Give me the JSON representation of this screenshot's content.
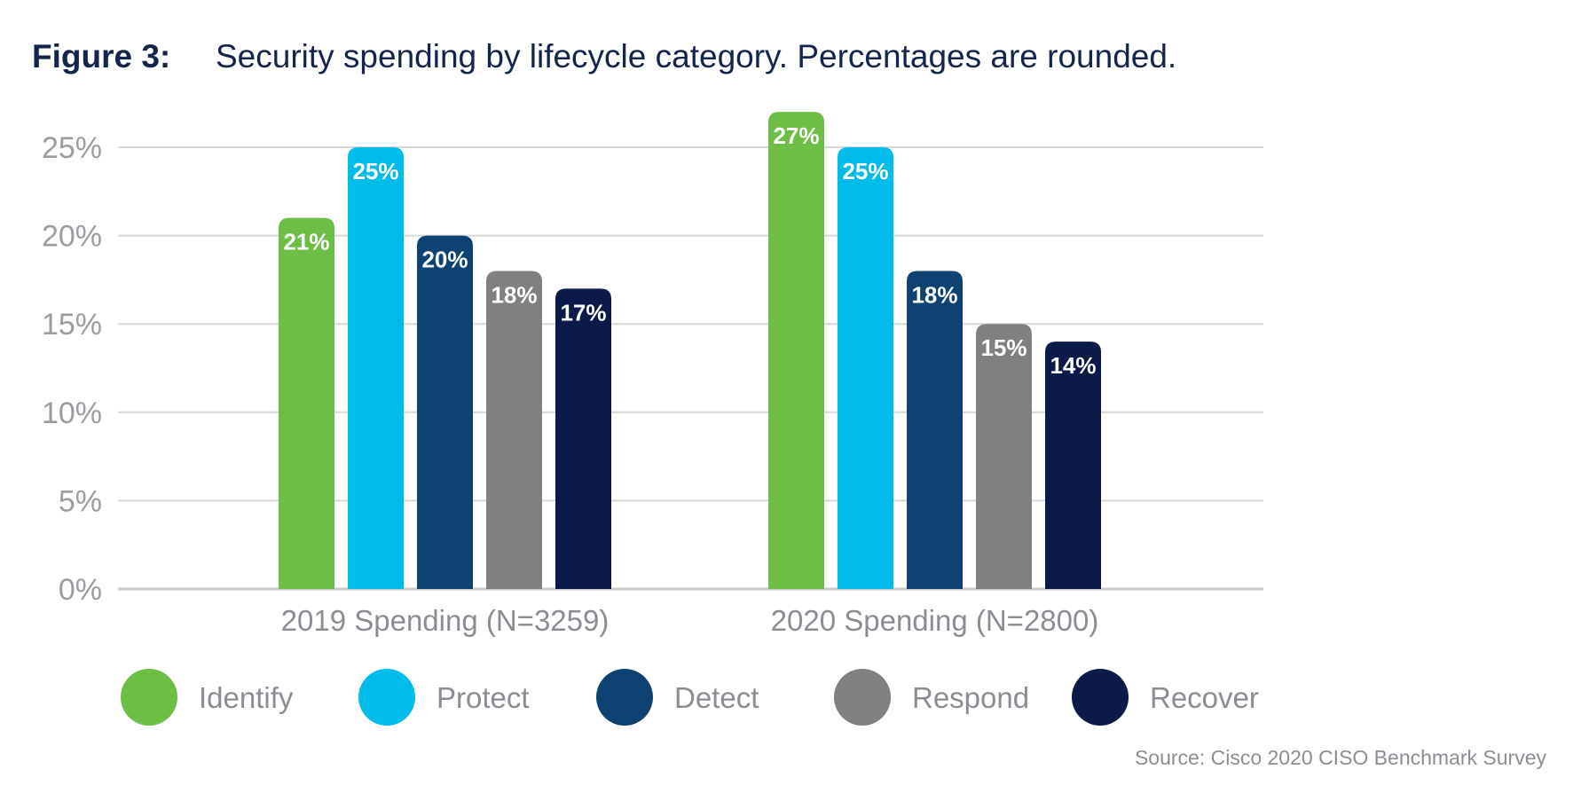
{
  "figure_label": "Figure 3:",
  "title": "Security spending by lifecycle category. Percentages are rounded.",
  "source": "Source: Cisco 2020 CISO Benchmark Survey",
  "chart_data": {
    "type": "bar",
    "categories": [
      "2019 Spending (N=3259)",
      "2020 Spending (N=2800)"
    ],
    "series": [
      {
        "name": "Identify",
        "color": "#6cbe45",
        "values": [
          21,
          27
        ],
        "labels": [
          "21%",
          "27%"
        ]
      },
      {
        "name": "Protect",
        "color": "#00bceb",
        "values": [
          25,
          25
        ],
        "labels": [
          "25%",
          "25%"
        ]
      },
      {
        "name": "Detect",
        "color": "#0d4273",
        "values": [
          20,
          18
        ],
        "labels": [
          "20%",
          "18%"
        ]
      },
      {
        "name": "Respond",
        "color": "#808083",
        "values": [
          18,
          15
        ],
        "labels": [
          "18%",
          "15%"
        ]
      },
      {
        "name": "Recover",
        "color": "#0c1a4a",
        "values": [
          17,
          14
        ],
        "labels": [
          "17%",
          "14%"
        ]
      }
    ],
    "ylim": [
      0,
      25
    ],
    "yticks": [
      0,
      5,
      10,
      15,
      20,
      25
    ],
    "ytick_labels": [
      "0%",
      "5%",
      "10%",
      "15%",
      "20%",
      "25%"
    ],
    "grid": true,
    "legend": "bottom"
  }
}
